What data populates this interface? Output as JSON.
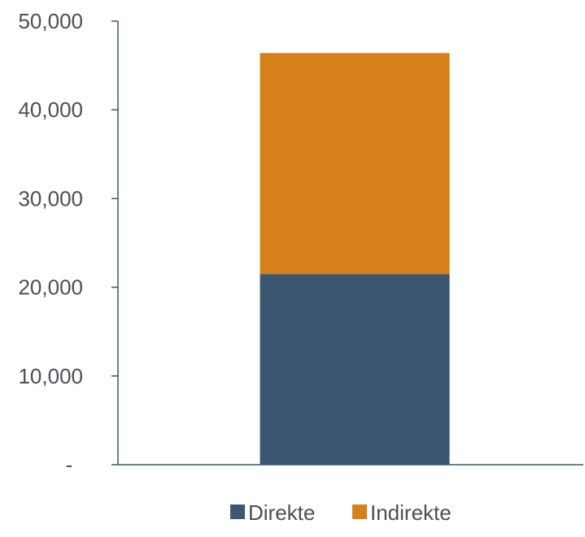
{
  "chart_data": {
    "type": "bar",
    "stacked": true,
    "categories": [
      ""
    ],
    "series": [
      {
        "name": "Direkte",
        "values": [
          21500
        ],
        "color": "#3c5772"
      },
      {
        "name": "Indirekte",
        "values": [
          24900
        ],
        "color": "#d68019"
      }
    ],
    "y_ticks": [
      {
        "value": 0,
        "label": "-"
      },
      {
        "value": 10000,
        "label": "10,000"
      },
      {
        "value": 20000,
        "label": "20,000"
      },
      {
        "value": 30000,
        "label": "30,000"
      },
      {
        "value": 40000,
        "label": "40,000"
      },
      {
        "value": 50000,
        "label": "50,000"
      }
    ],
    "ylim": [
      0,
      50000
    ],
    "title": "",
    "xlabel": "",
    "ylabel": "",
    "grid": false,
    "legend_position": "bottom",
    "axis_color": "#3c5772"
  }
}
